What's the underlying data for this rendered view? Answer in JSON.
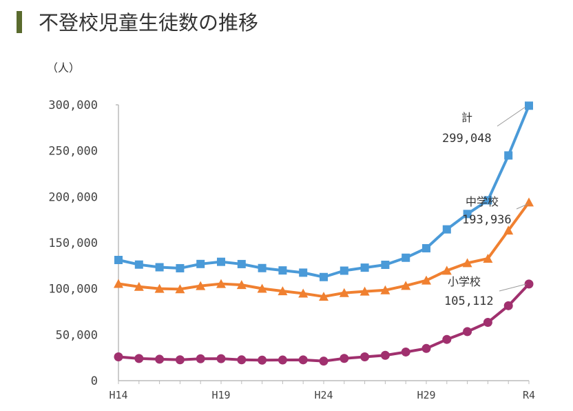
{
  "title": "不登校児童生徒数の推移",
  "chart_data": {
    "type": "line",
    "title": "不登校児童生徒数の推移",
    "ylabel": "（人）",
    "xlabel": "",
    "ylim": [
      0,
      300000
    ],
    "yticks": [
      "0",
      "50,000",
      "100,000",
      "150,000",
      "200,000",
      "250,000",
      "300,000"
    ],
    "ytick_values": [
      0,
      50000,
      100000,
      150000,
      200000,
      250000,
      300000
    ],
    "x": [
      "H14",
      "H15",
      "H16",
      "H17",
      "H18",
      "H19",
      "H20",
      "H21",
      "H22",
      "H23",
      "H24",
      "H25",
      "H26",
      "H27",
      "H28",
      "H29",
      "H30",
      "R1",
      "R2",
      "R3",
      "R4"
    ],
    "xtick_labels": [
      "H14",
      "H19",
      "H24",
      "H29",
      "R4"
    ],
    "grid": false,
    "series": [
      {
        "name": "計",
        "color": "#4a9ad8",
        "marker": "square",
        "values": [
          131252,
          126226,
          123358,
          122287,
          126894,
          129255,
          126805,
          122432,
          119891,
          117458,
          112689,
          119617,
          122897,
          125991,
          133683,
          144031,
          164528,
          181272,
          196127,
          244940,
          299048
        ],
        "label": "計",
        "value_label": "299,048"
      },
      {
        "name": "中学校",
        "color": "#f08030",
        "marker": "triangle",
        "values": [
          105383,
          102149,
          100040,
          99578,
          103069,
          105328,
          104153,
          100105,
          97428,
          94836,
          91446,
          95442,
          97033,
          98408,
          103235,
          108999,
          119687,
          127922,
          132777,
          163442,
          193936
        ],
        "label": "中学校",
        "value_label": "193,936"
      },
      {
        "name": "小学校",
        "color": "#a0306e",
        "marker": "circle",
        "values": [
          25869,
          24077,
          23318,
          22709,
          23825,
          23927,
          22652,
          22327,
          22463,
          22622,
          21243,
          24175,
          25864,
          27583,
          31151,
          35032,
          44841,
          53350,
          63350,
          81498,
          105112
        ],
        "label": "小学校",
        "value_label": "105,112"
      }
    ]
  }
}
